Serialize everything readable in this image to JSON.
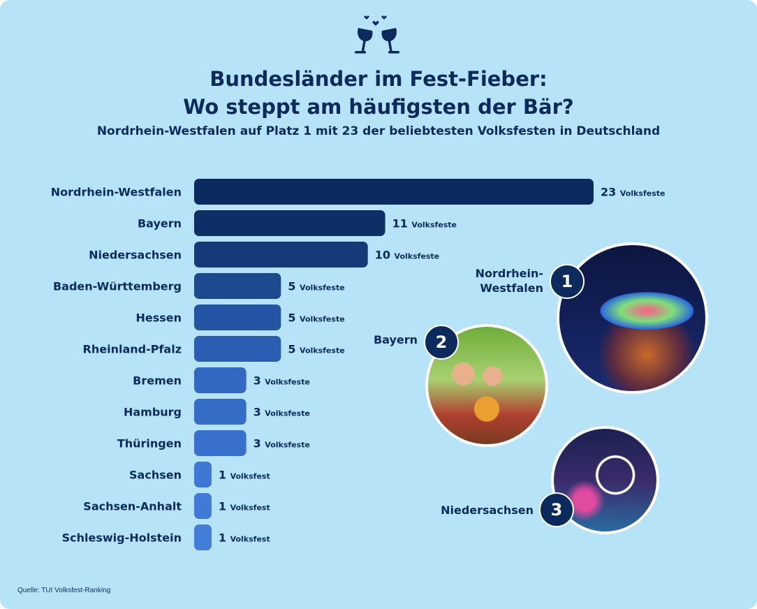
{
  "header": {
    "icon": "wine-glasses-toast-icon",
    "title_line1": "Bundesländer im Fest-Fieber:",
    "title_line2": "Wo steppt am häufigsten der Bär?",
    "subtitle": "Nordrhein-Westfalen auf Platz 1 mit 23 der beliebtesten Volksfesten in Deutschland"
  },
  "chart_data": {
    "type": "bar",
    "orientation": "horizontal",
    "categories": [
      "Nordrhein-Westfalen",
      "Bayern",
      "Niedersachsen",
      "Baden-Württemberg",
      "Hessen",
      "Rheinland-Pfalz",
      "Bremen",
      "Hamburg",
      "Thüringen",
      "Sachsen",
      "Sachsen-Anhalt",
      "Schleswig-Holstein"
    ],
    "values": [
      23,
      11,
      10,
      5,
      5,
      5,
      3,
      3,
      3,
      1,
      1,
      1
    ],
    "value_units": [
      "Volksfeste",
      "Volksfeste",
      "Volksfeste",
      "Volksfeste",
      "Volksfeste",
      "Volksfeste",
      "Volksfeste",
      "Volksfeste",
      "Volksfeste",
      "Volksfest",
      "Volksfest",
      "Volksfest"
    ],
    "xlim": [
      0,
      23
    ],
    "grid": false,
    "colors": [
      "#0b2a5e",
      "#0e2e66",
      "#143a78",
      "#1d4a8e",
      "#2554a2",
      "#2b5eb2",
      "#3368c2",
      "#356cc6",
      "#3870cb",
      "#3e78d4",
      "#407ad6",
      "#427dd8"
    ]
  },
  "ranking": [
    {
      "rank": "1",
      "label": "Nordrhein-Westfalen",
      "label_line1": "Nordrhein-",
      "label_line2": "Westfalen",
      "photo": "fairground-carousel-photo"
    },
    {
      "rank": "2",
      "label": "Bayern",
      "photo": "beer-toast-photo"
    },
    {
      "rank": "3",
      "label": "Niedersachsen",
      "photo": "ferris-wheel-photo"
    }
  ],
  "footer": {
    "source": "Quelle: TUI Volksfest-Ranking"
  },
  "colors": {
    "background": "#b6e3f8",
    "text": "#0d2a5c"
  }
}
